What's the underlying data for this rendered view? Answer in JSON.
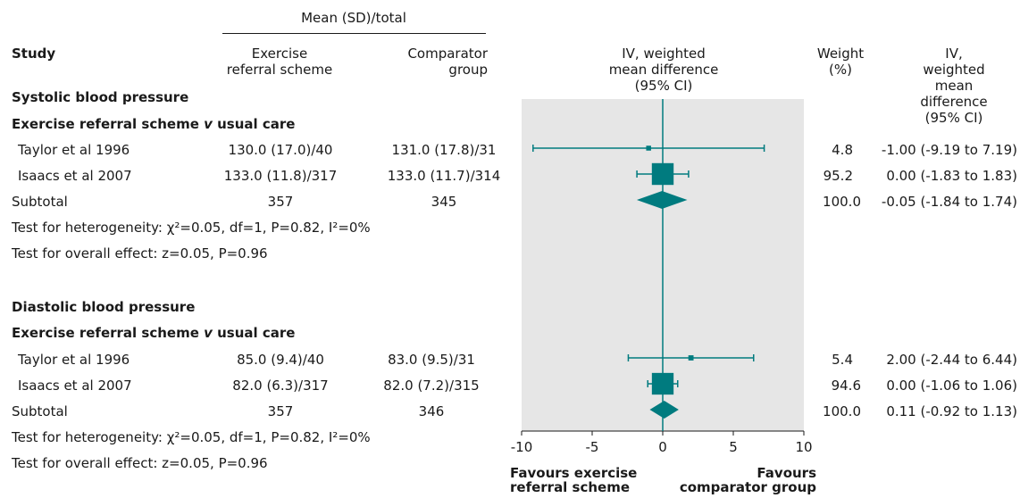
{
  "header": {
    "mean_group": "Mean (SD)/total",
    "study": "Study",
    "exercise_col": "Exercise\nreferral scheme",
    "comparator_col": "Comparator\ngroup",
    "plot_col": "IV, weighted\nmean difference\n(95% CI)",
    "weight_col": "Weight\n(%)",
    "md_col": "IV, weighted\nmean difference\n(95% CI)"
  },
  "sections": [
    {
      "title": "Systolic blood pressure",
      "subtitle": "Exercise referral scheme v usual care",
      "rows": [
        {
          "study": "Taylor et al 1996",
          "exercise": "130.0 (17.0)/40",
          "comparator": "131.0 (17.8)/31",
          "weight": "4.8",
          "ci": "-1.00 (-9.19 to 7.19)"
        },
        {
          "study": "Isaacs et al 2007",
          "exercise": "133.0 (11.8)/317",
          "comparator": "133.0 (11.7)/314",
          "weight": "95.2",
          "ci": "0.00 (-1.83 to 1.83)"
        }
      ],
      "subtotal": {
        "label": "Subtotal",
        "exercise": "357",
        "comparator": "345",
        "weight": "100.0",
        "ci": "-0.05 (-1.84 to 1.74)"
      },
      "heterogeneity": "Test for heterogeneity: χ²=0.05, df=1, P=0.82, I²=0%",
      "overall": "Test for overall effect: z=0.05, P=0.96"
    },
    {
      "title": "Diastolic blood pressure",
      "subtitle": "Exercise referral scheme v usual care",
      "rows": [
        {
          "study": "Taylor et al 1996",
          "exercise": "85.0 (9.4)/40",
          "comparator": "83.0 (9.5)/31",
          "weight": "5.4",
          "ci": "2.00 (-2.44 to 6.44)"
        },
        {
          "study": "Isaacs et al 2007",
          "exercise": "82.0 (6.3)/317",
          "comparator": "82.0 (7.2)/315",
          "weight": "94.6",
          "ci": "0.00 (-1.06 to 1.06)"
        }
      ],
      "subtotal": {
        "label": "Subtotal",
        "exercise": "357",
        "comparator": "346",
        "weight": "100.0",
        "ci": "0.11 (-0.92 to 1.13)"
      },
      "heterogeneity": "Test for heterogeneity: χ²=0.05, df=1, P=0.82, I²=0%",
      "overall": "Test for overall effect: z=0.05, P=0.96"
    }
  ],
  "axis": {
    "ticks": [
      "-10",
      "-5",
      "0",
      "5",
      "10"
    ],
    "favours_left": "Favours exercise\nreferral scheme",
    "favours_right": "Favours\ncomparator group"
  },
  "colors": {
    "marker": "#007b7f",
    "panel": "#e6e6e6"
  },
  "chart_data": {
    "type": "forest",
    "xlim": [
      -10,
      10
    ],
    "ticks": [
      -10,
      -5,
      0,
      5,
      10
    ],
    "studies": [
      {
        "section": "Systolic blood pressure",
        "study": "Taylor et al 1996",
        "md": -1.0,
        "lo": -9.19,
        "hi": 7.19,
        "weight": 4.8
      },
      {
        "section": "Systolic blood pressure",
        "study": "Isaacs et al 2007",
        "md": 0.0,
        "lo": -1.83,
        "hi": 1.83,
        "weight": 95.2
      },
      {
        "section": "Diastolic blood pressure",
        "study": "Taylor et al 1996",
        "md": 2.0,
        "lo": -2.44,
        "hi": 6.44,
        "weight": 5.4
      },
      {
        "section": "Diastolic blood pressure",
        "study": "Isaacs et al 2007",
        "md": 0.0,
        "lo": -1.06,
        "hi": 1.06,
        "weight": 94.6
      }
    ],
    "subtotals": [
      {
        "section": "Systolic blood pressure",
        "md": -0.05,
        "lo": -1.84,
        "hi": 1.74
      },
      {
        "section": "Diastolic blood pressure",
        "md": 0.11,
        "lo": -0.92,
        "hi": 1.13
      }
    ]
  }
}
